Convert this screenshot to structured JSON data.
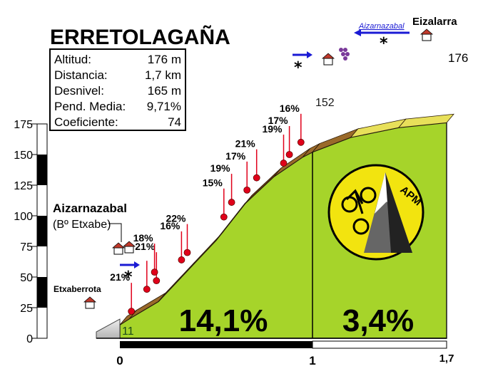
{
  "title": "ERRETOLAGAÑA",
  "stats": [
    {
      "label": "Altitud:",
      "value": "176 m"
    },
    {
      "label": "Distancia:",
      "value": "1,7 km"
    },
    {
      "label": "Desnivel:",
      "value": "165 m"
    },
    {
      "label": "Pend. Media:",
      "value": "9,71%"
    },
    {
      "label": "Coeficiente:",
      "value": "74"
    }
  ],
  "places": {
    "start": "Etxaberrota",
    "mid_name": "Aizarnazabal",
    "mid_sub": "(Bº Etxabe)",
    "end": "Eizalarra",
    "arrow_to": "Aizarnazabal"
  },
  "logo": {
    "text": "APM"
  },
  "colors": {
    "profile_green": "#a6d42a",
    "road_brown": "#4a2a10",
    "marker_red": "#e0001a",
    "arrow_blue": "#1a1ad4"
  },
  "chart_data": {
    "type": "area",
    "y_ticks": [
      "0",
      "25",
      "50",
      "75",
      "100",
      "125",
      "150",
      "175"
    ],
    "ylim": [
      0,
      175
    ],
    "x_ticks": [
      "0",
      "1",
      "1,7"
    ],
    "xlim": [
      0,
      1.7
    ],
    "profile": {
      "x": [
        0,
        0.05,
        0.2,
        0.35,
        0.5,
        0.65,
        0.8,
        0.95,
        1.0,
        1.2,
        1.45,
        1.7
      ],
      "y": [
        11,
        16,
        30,
        55,
        80,
        110,
        132,
        148,
        152,
        164,
        172,
        176
      ]
    },
    "start_altitude": "11",
    "km1_altitude": "152",
    "end_altitude": "176",
    "segment_gradients": [
      {
        "label": "14,1%",
        "x_from": 0,
        "x_to": 1
      },
      {
        "label": "3,4%",
        "x_from": 1,
        "x_to": 1.7
      }
    ],
    "ramp_markers": [
      {
        "x": 0.06,
        "y": 22,
        "label": "21%"
      },
      {
        "x": 0.14,
        "y": 40,
        "label": ""
      },
      {
        "x": 0.19,
        "y": 47,
        "label": "21%"
      },
      {
        "x": 0.18,
        "y": 54,
        "label": "18%"
      },
      {
        "x": 0.32,
        "y": 64,
        "label": "16%"
      },
      {
        "x": 0.35,
        "y": 70,
        "label": "22%"
      },
      {
        "x": 0.54,
        "y": 99,
        "label": "15%"
      },
      {
        "x": 0.58,
        "y": 111,
        "label": "19%"
      },
      {
        "x": 0.66,
        "y": 121,
        "label": "17%"
      },
      {
        "x": 0.71,
        "y": 131,
        "label": "21%"
      },
      {
        "x": 0.85,
        "y": 143,
        "label": "19%"
      },
      {
        "x": 0.88,
        "y": 150,
        "label": "17%"
      },
      {
        "x": 0.94,
        "y": 160,
        "label": "16%"
      }
    ]
  }
}
